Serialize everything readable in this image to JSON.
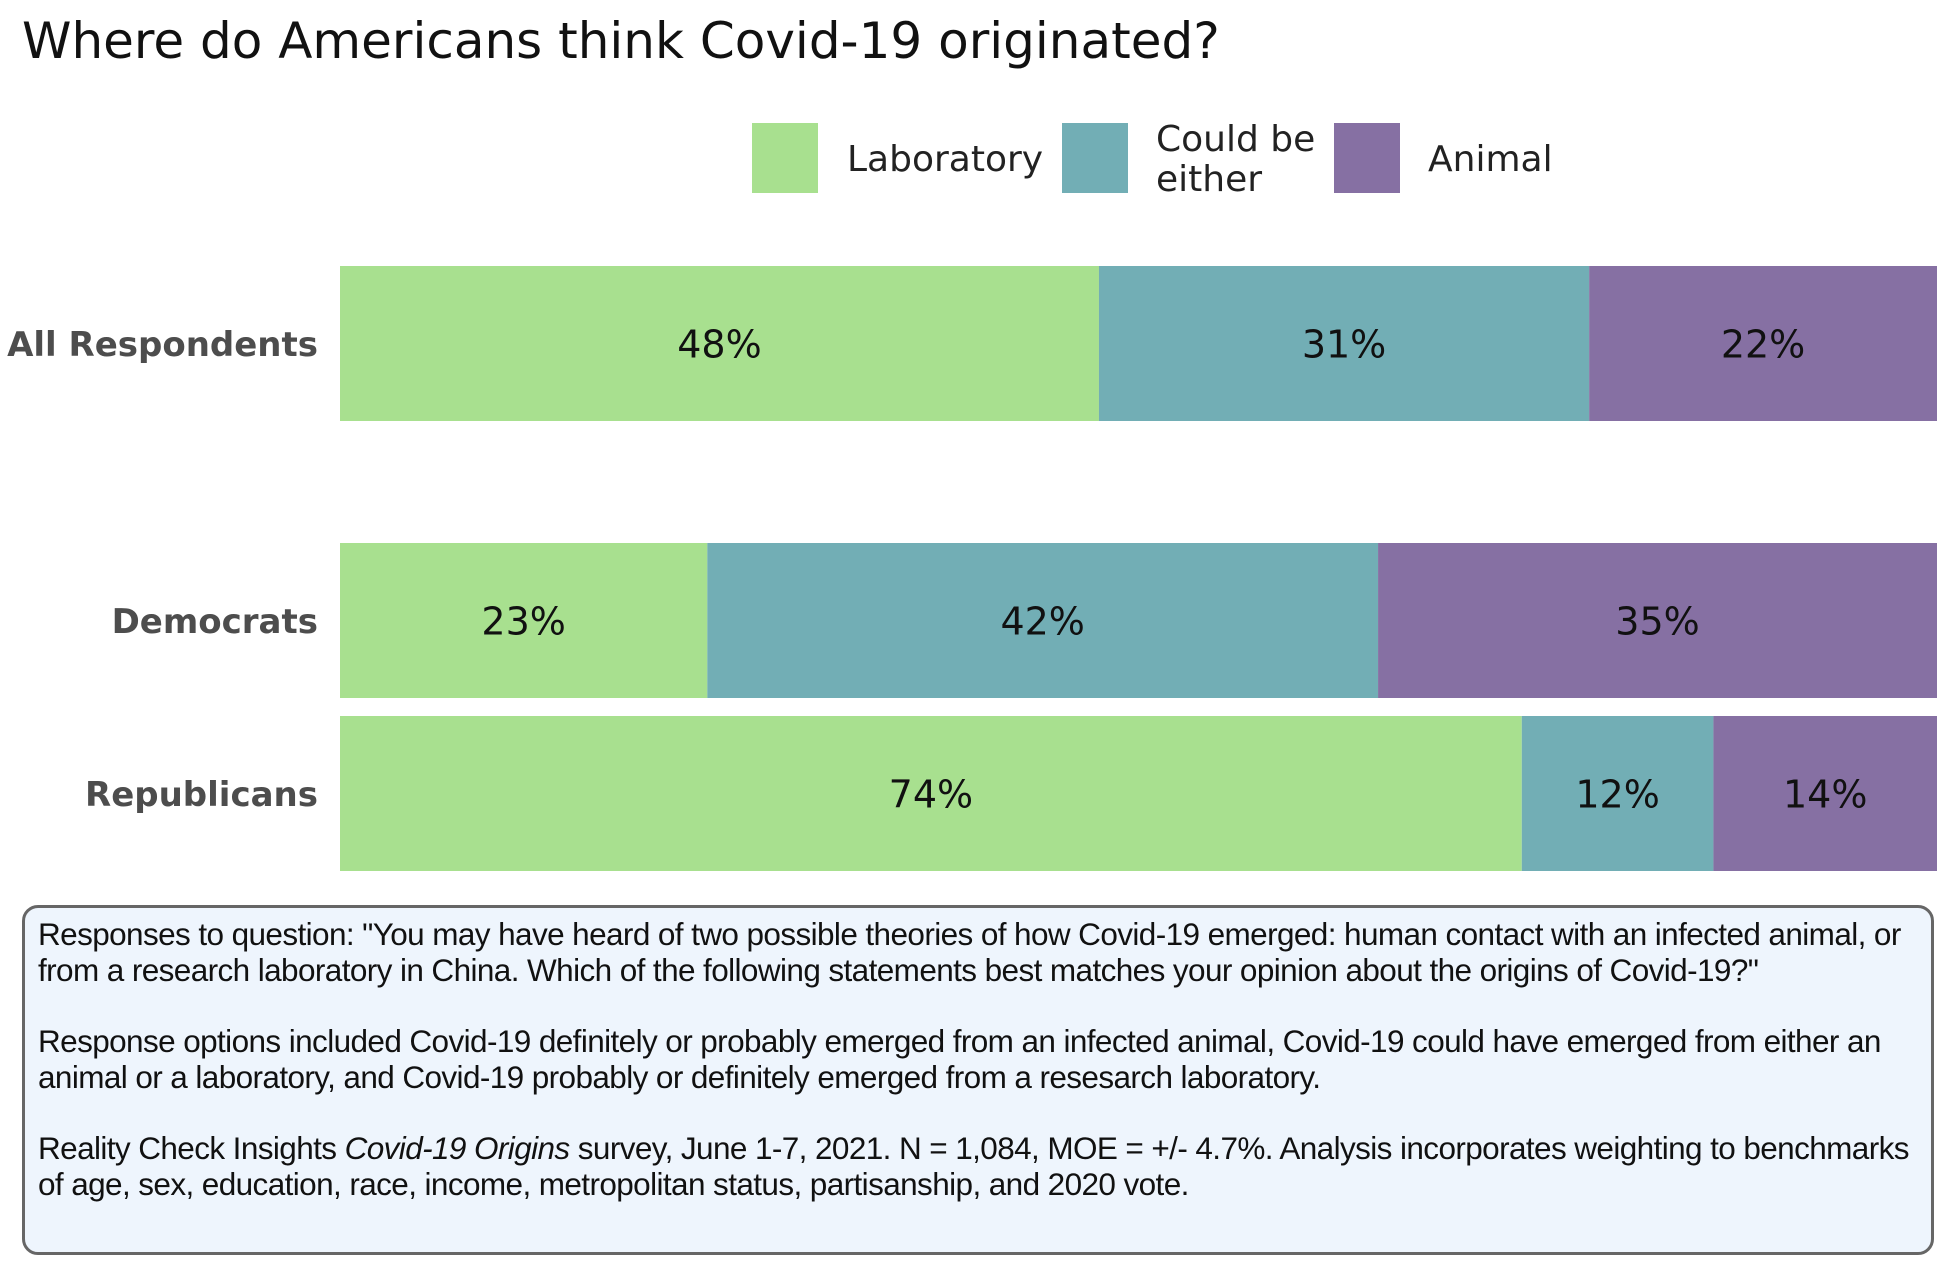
{
  "title": "Where do Americans think Covid-19 originated?",
  "legend": [
    {
      "label": "Laboratory",
      "color": "#a8e08f"
    },
    {
      "label": "Could be either",
      "line1": "Could be",
      "line2": "either",
      "color": "#72aeb5"
    },
    {
      "label": "Animal",
      "color": "#8670a3"
    }
  ],
  "chart_data": {
    "type": "bar",
    "orientation": "horizontal",
    "stacked": true,
    "title": "Where do Americans think Covid-19 originated?",
    "categories": [
      "All Respondents",
      "Democrats",
      "Republicans"
    ],
    "series": [
      {
        "name": "Laboratory",
        "values": [
          48,
          23,
          74
        ],
        "labels": [
          "48%",
          "23%",
          "74%"
        ],
        "color": "#a8e08f"
      },
      {
        "name": "Could be either",
        "values": [
          31,
          42,
          12
        ],
        "labels": [
          "31%",
          "42%",
          "12%"
        ],
        "color": "#72aeb5"
      },
      {
        "name": "Animal",
        "values": [
          22,
          35,
          14
        ],
        "labels": [
          "22%",
          "35%",
          "14%"
        ],
        "color": "#8670a3"
      }
    ],
    "legend_position": "top-right",
    "grid": false
  },
  "note": {
    "paragraph1": "Responses to question: \"You may have heard of two possible theories of how Covid-19 emerged: human contact with an infected animal, or from a research laboratory in China. Which of the following statements best matches your opinion about the origins of Covid-19?\"",
    "paragraph2": "Response options included Covid-19 definitely or probably emerged from an infected animal, Covid-19 could have emerged from either an animal or a laboratory, and Covid-19 probably or definitely emerged from a resesarch laboratory.",
    "paragraph3_before": "Reality Check Insights ",
    "paragraph3_italic": "Covid-19 Origins",
    "paragraph3_after": " survey, June 1-7, 2021. N = 1,084, MOE = +/- 4.7%. Analysis incorporates weighting to benchmarks of age, sex, education, race, income, metropolitan status, partisanship, and 2020 vote."
  }
}
